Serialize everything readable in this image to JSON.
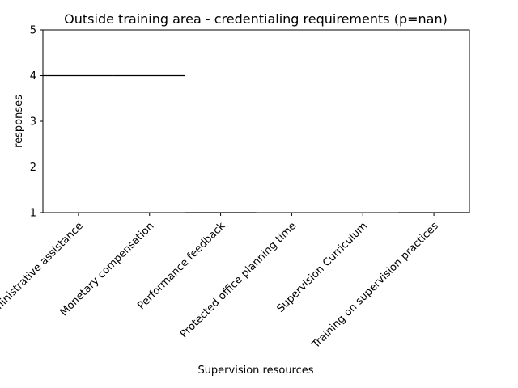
{
  "chart_data": {
    "type": "violin",
    "title": "Outside training area - credentialing requirements (p=nan)",
    "xlabel": "Supervision resources",
    "ylabel": "responses",
    "ylim": [
      1,
      5
    ],
    "yticks": [
      "1",
      "2",
      "3",
      "4",
      "5"
    ],
    "categories": [
      "Administrative assistance",
      "Monetary compensation",
      "Performance feedback",
      "Protected office planning time",
      "Supervision Curriculum",
      "Training on supervision practices"
    ],
    "values": [
      4,
      4,
      1,
      null,
      null,
      1
    ],
    "grid": false,
    "line_color": "#000000"
  }
}
